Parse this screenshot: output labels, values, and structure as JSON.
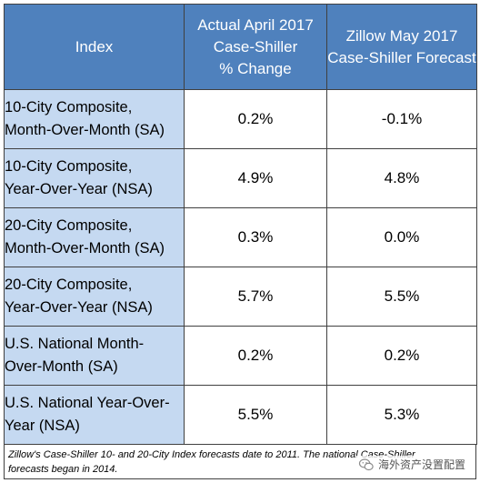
{
  "table": {
    "headers": [
      {
        "lines": [
          "Index"
        ]
      },
      {
        "lines": [
          "Actual April 2017",
          "Case-Shiller",
          "% Change"
        ]
      },
      {
        "lines": [
          "Zillow May 2017",
          "Case-Shiller Forecast"
        ]
      }
    ],
    "rows": [
      {
        "label_lines": [
          "10-City Composite,",
          "Month-Over-Month (SA)"
        ],
        "actual": "0.2%",
        "forecast": "-0.1%"
      },
      {
        "label_lines": [
          "10-City Composite,",
          "Year-Over-Year (NSA)"
        ],
        "actual": "4.9%",
        "forecast": "4.8%"
      },
      {
        "label_lines": [
          "20-City Composite,",
          "Month-Over-Month (SA)"
        ],
        "actual": "0.3%",
        "forecast": "0.0%"
      },
      {
        "label_lines": [
          "20-City Composite,",
          "Year-Over-Year (NSA)"
        ],
        "actual": "5.7%",
        "forecast": "5.5%"
      },
      {
        "label_lines": [
          "U.S. National Month-",
          "Over-Month (SA)"
        ],
        "actual": "0.2%",
        "forecast": "0.2%"
      },
      {
        "label_lines": [
          "U.S. National Year-Over-",
          "Year (NSA)"
        ],
        "actual": "5.5%",
        "forecast": "5.3%"
      }
    ]
  },
  "footnote": {
    "lines": [
      "Zillow's Case-Shiller 10- and 20-City Index forecasts date to 2011.  The national Case-Shiller",
      "forecasts began in 2014."
    ]
  },
  "watermark": {
    "icon": "wechat-icon",
    "text": "海外资产没置配置"
  },
  "colors": {
    "header_bg": "#4f81bd",
    "label_bg": "#c5d9f1",
    "border": "#404040"
  }
}
